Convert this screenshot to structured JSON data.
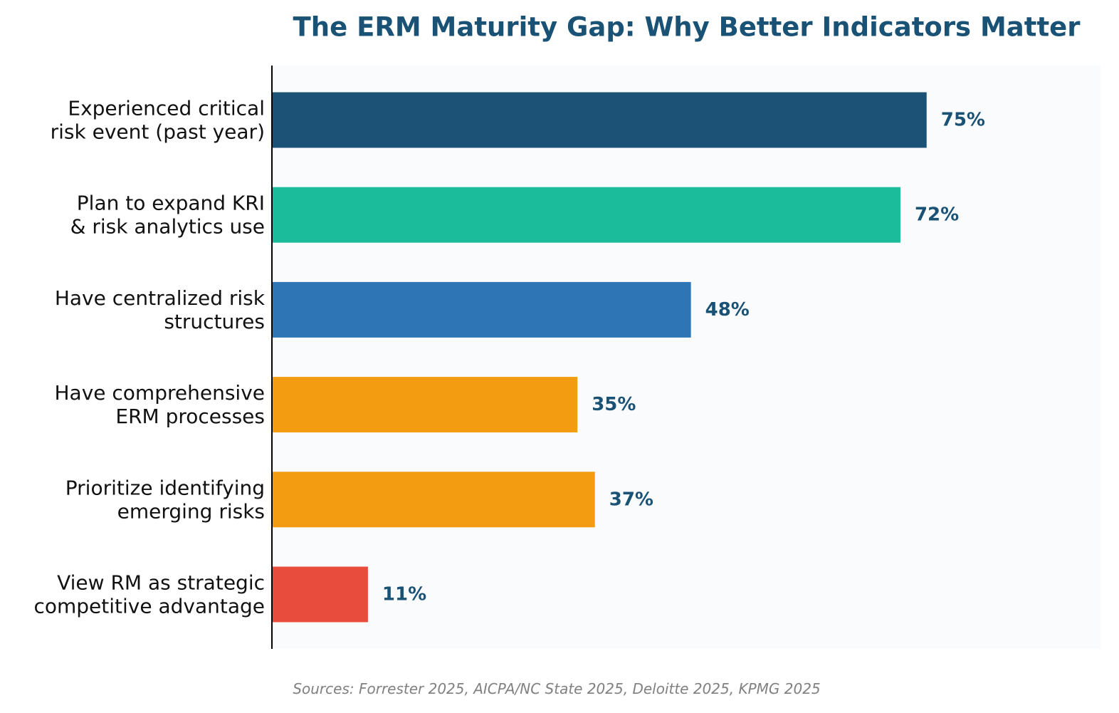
{
  "chart_data": {
    "type": "bar",
    "orientation": "horizontal",
    "title": "The ERM Maturity Gap: Why Better Indicators Matter",
    "categories": [
      [
        "Experienced critical",
        "risk event (past year)"
      ],
      [
        "Plan to expand KRI",
        "& risk analytics use"
      ],
      [
        "Have centralized risk",
        "structures"
      ],
      [
        "Have comprehensive",
        "ERM processes"
      ],
      [
        "Prioritize identifying",
        "emerging risks"
      ],
      [
        "View RM as strategic",
        "competitive advantage"
      ]
    ],
    "values": [
      75,
      72,
      48,
      35,
      37,
      11
    ],
    "value_labels": [
      "75%",
      "72%",
      "48%",
      "35%",
      "37%",
      "11%"
    ],
    "colors": [
      "#1b5276",
      "#1abc9c",
      "#2e75b6",
      "#f39c12",
      "#f39c12",
      "#e74c3c"
    ],
    "xlim": [
      0,
      95
    ],
    "grid": false,
    "source": "Sources: Forrester 2025, AICPA/NC State 2025, Deloitte 2025, KPMG 2025"
  },
  "colors": {
    "title": "#1a5276",
    "value_label": "#1a5276",
    "plot_background": "#fafbfd",
    "axis": "#000000",
    "source": "#808080"
  }
}
